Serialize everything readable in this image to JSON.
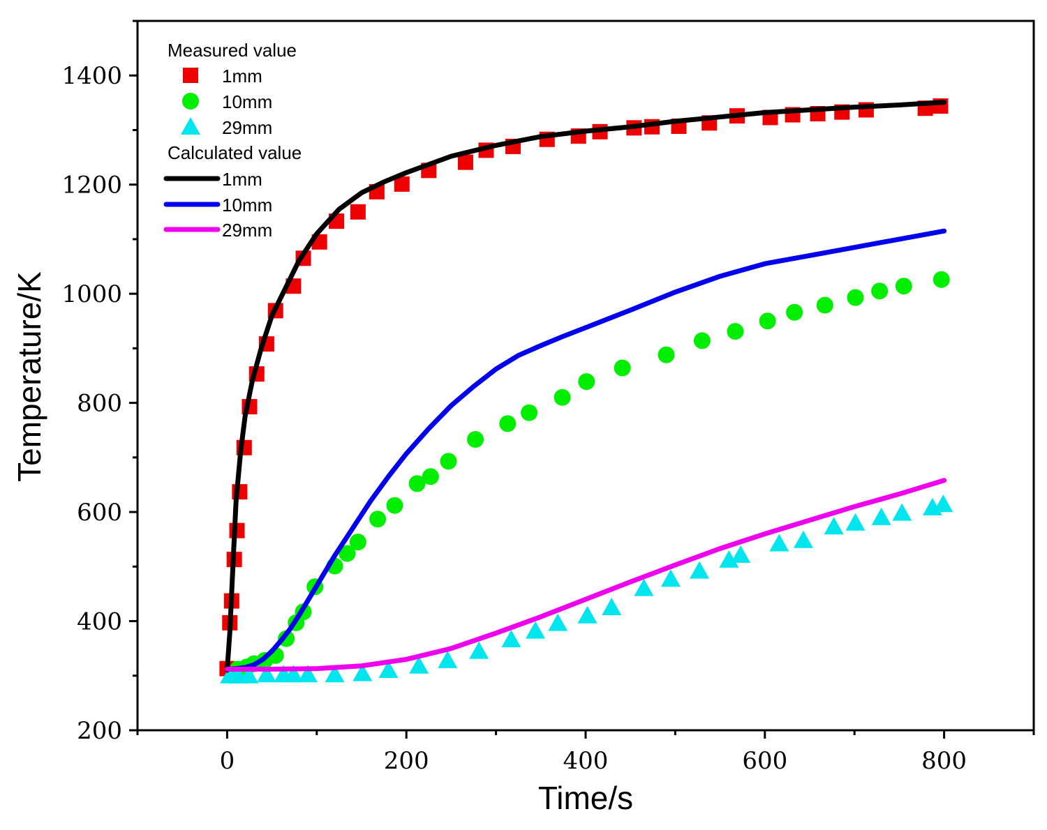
{
  "chart_data": {
    "type": "scatter",
    "xlabel": "Time/s",
    "ylabel": "Temperature/K",
    "xlim": [
      -100,
      900
    ],
    "ylim": [
      200,
      1500
    ],
    "xticks": [
      0,
      200,
      400,
      600,
      800
    ],
    "yticks": [
      200,
      400,
      600,
      800,
      1000,
      1200,
      1400
    ],
    "legend_position": "top-left",
    "legend": {
      "measured_title": "Measured value",
      "calculated_title": "Calculated value"
    },
    "measured": [
      {
        "name": "1mm",
        "marker": "square",
        "color": "#ee0000",
        "x": [
          0,
          3,
          5,
          8,
          11,
          14,
          19,
          25,
          33,
          44,
          54,
          74,
          85,
          103,
          122,
          146,
          167,
          195,
          225,
          266,
          289,
          319,
          357,
          392,
          416,
          454,
          474,
          504,
          538,
          569,
          606,
          631,
          659,
          686,
          713,
          779,
          796
        ],
        "y": [
          313,
          397,
          437,
          513,
          566,
          637,
          718,
          793,
          853,
          908,
          969,
          1014,
          1065,
          1095,
          1133,
          1150,
          1187,
          1201,
          1226,
          1241,
          1263,
          1270,
          1283,
          1289,
          1297,
          1304,
          1306,
          1307,
          1313,
          1326,
          1323,
          1328,
          1330,
          1333,
          1337,
          1340,
          1344
        ]
      },
      {
        "name": "10mm",
        "marker": "circle",
        "color": "#00ee00",
        "x": [
          12,
          22,
          30,
          42,
          54,
          66,
          77,
          85,
          98,
          120,
          134,
          146,
          168,
          187,
          212,
          227,
          247,
          277,
          313,
          337,
          374,
          401,
          441,
          490,
          530,
          567,
          603,
          633,
          667,
          701,
          728,
          755,
          797
        ],
        "y": [
          312,
          316,
          322,
          328,
          337,
          368,
          397,
          417,
          463,
          501,
          524,
          545,
          587,
          612,
          652,
          665,
          693,
          733,
          762,
          782,
          810,
          839,
          864,
          888,
          914,
          931,
          950,
          966,
          979,
          993,
          1005,
          1014,
          1026
        ]
      },
      {
        "name": "29mm",
        "marker": "triangle",
        "color": "#00e5ee",
        "x": [
          3,
          12,
          24,
          44,
          63,
          74,
          90,
          120,
          151,
          180,
          214,
          246,
          281,
          317,
          344,
          369,
          402,
          429,
          465,
          495,
          527,
          560,
          573,
          616,
          643,
          677,
          701,
          730,
          753,
          787,
          799
        ],
        "y": [
          300,
          300,
          300,
          302,
          302,
          302,
          302,
          302,
          304,
          310,
          318,
          328,
          345,
          366,
          382,
          396,
          410,
          425,
          460,
          477,
          492,
          512,
          521,
          542,
          548,
          573,
          580,
          590,
          598,
          608,
          614
        ]
      }
    ],
    "calculated": [
      {
        "name": "1mm",
        "color": "#000000",
        "x": [
          0,
          3,
          7,
          10,
          15,
          20,
          28,
          38,
          50,
          65,
          80,
          100,
          125,
          150,
          175,
          200,
          250,
          300,
          350,
          400,
          450,
          500,
          550,
          600,
          650,
          700,
          750,
          800
        ],
        "y": [
          310,
          380,
          520,
          620,
          710,
          775,
          840,
          900,
          960,
          1010,
          1060,
          1110,
          1155,
          1185,
          1205,
          1222,
          1252,
          1272,
          1288,
          1298,
          1306,
          1316,
          1324,
          1332,
          1337,
          1342,
          1346,
          1351
        ]
      },
      {
        "name": "10mm",
        "color": "#0000ee",
        "x": [
          0,
          10,
          20,
          30,
          40,
          50,
          60,
          70,
          80,
          100,
          120,
          140,
          160,
          180,
          200,
          225,
          250,
          275,
          300,
          325,
          350,
          375,
          400,
          450,
          500,
          550,
          600,
          650,
          700,
          750,
          800
        ],
        "y": [
          312,
          313,
          315,
          320,
          330,
          345,
          364,
          385,
          410,
          465,
          520,
          570,
          620,
          665,
          707,
          753,
          795,
          830,
          862,
          887,
          905,
          922,
          938,
          970,
          1003,
          1032,
          1055,
          1070,
          1085,
          1100,
          1115
        ]
      },
      {
        "name": "29mm",
        "color": "#ee00ee",
        "x": [
          0,
          50,
          100,
          150,
          200,
          250,
          300,
          350,
          400,
          450,
          500,
          550,
          600,
          650,
          700,
          750,
          800
        ],
        "y": [
          312,
          312,
          313,
          318,
          330,
          350,
          378,
          408,
          440,
          472,
          503,
          533,
          560,
          585,
          610,
          633,
          658
        ]
      }
    ]
  }
}
